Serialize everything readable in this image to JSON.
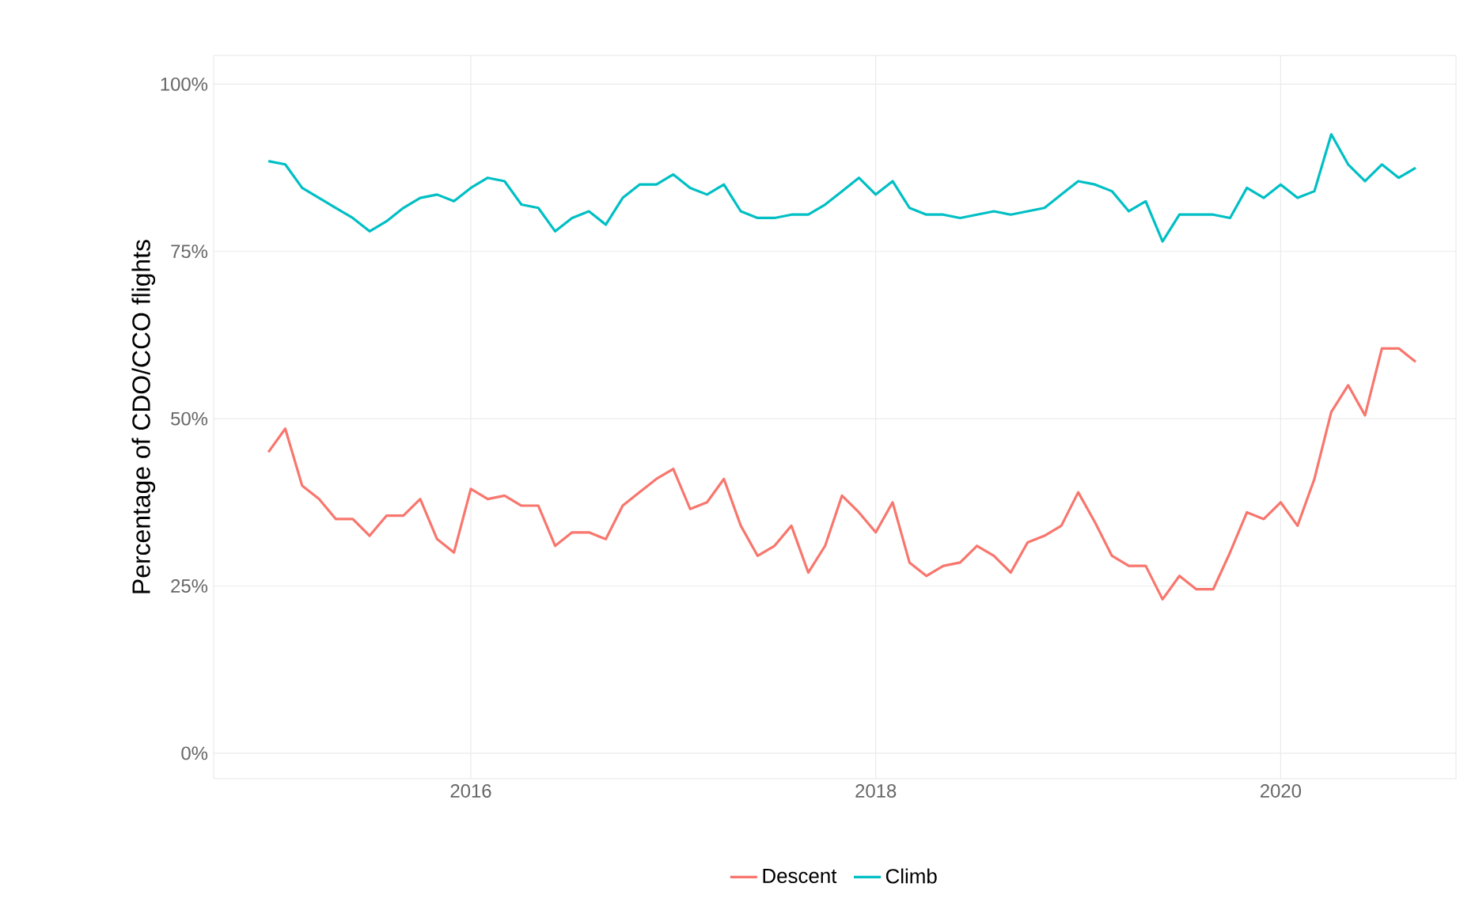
{
  "chart_data": {
    "type": "line",
    "ylabel": "Percentage of CDO/CCO flights",
    "x": [
      "2015-01",
      "2015-02",
      "2015-03",
      "2015-04",
      "2015-05",
      "2015-06",
      "2015-07",
      "2015-08",
      "2015-09",
      "2015-10",
      "2015-11",
      "2015-12",
      "2016-01",
      "2016-02",
      "2016-03",
      "2016-04",
      "2016-05",
      "2016-06",
      "2016-07",
      "2016-08",
      "2016-09",
      "2016-10",
      "2016-11",
      "2016-12",
      "2017-01",
      "2017-02",
      "2017-03",
      "2017-04",
      "2017-05",
      "2017-06",
      "2017-07",
      "2017-08",
      "2017-09",
      "2017-10",
      "2017-11",
      "2017-12",
      "2018-01",
      "2018-02",
      "2018-03",
      "2018-04",
      "2018-05",
      "2018-06",
      "2018-07",
      "2018-08",
      "2018-09",
      "2018-10",
      "2018-11",
      "2018-12",
      "2019-01",
      "2019-02",
      "2019-03",
      "2019-04",
      "2019-05",
      "2019-06",
      "2019-07",
      "2019-08",
      "2019-09",
      "2019-10",
      "2019-11",
      "2019-12",
      "2020-01",
      "2020-02",
      "2020-03",
      "2020-04",
      "2020-05",
      "2020-06",
      "2020-07",
      "2020-08",
      "2020-09"
    ],
    "series": [
      {
        "name": "Descent",
        "color": "#f8766d",
        "values": [
          45,
          48.5,
          40,
          38,
          35,
          35,
          32.5,
          35.5,
          35.5,
          38,
          32,
          30,
          39.5,
          38,
          38.5,
          37,
          37,
          31,
          33,
          33,
          32,
          37,
          39,
          41,
          42.5,
          36.5,
          37.5,
          41,
          34,
          29.5,
          31,
          34,
          27,
          31,
          38.5,
          36,
          33,
          37.5,
          28.5,
          26.5,
          28,
          28.5,
          31,
          29.5,
          27,
          31.5,
          32.5,
          34,
          39,
          34.5,
          29.5,
          28,
          28,
          23,
          26.5,
          24.5,
          24.5,
          30,
          36,
          35,
          37.5,
          34,
          41,
          51,
          55,
          50.5,
          60.5,
          60.5,
          58.5
        ]
      },
      {
        "name": "Climb",
        "color": "#00bfc4",
        "values": [
          88.5,
          88,
          84.5,
          83,
          81.5,
          80,
          78,
          79.5,
          81.5,
          83,
          83.5,
          82.5,
          84.5,
          86,
          85.5,
          82,
          81.5,
          78,
          80,
          81,
          79,
          83,
          85,
          85,
          86.5,
          84.5,
          83.5,
          85,
          81,
          80,
          80,
          80.5,
          80.5,
          82,
          84,
          86,
          83.5,
          85.5,
          81.5,
          80.5,
          80.5,
          80,
          80.5,
          81,
          80.5,
          81,
          81.5,
          83.5,
          85.5,
          85,
          84,
          81,
          82.5,
          76.5,
          80.5,
          80.5,
          80.5,
          80,
          84.5,
          83,
          85,
          83,
          84,
          92.5,
          88,
          85.5,
          88,
          86,
          87.5
        ]
      }
    ],
    "xlim": [
      "2014-09-24",
      "2020-11-13"
    ],
    "xticks": [
      {
        "value": "2016",
        "label": "2016"
      },
      {
        "value": "2018",
        "label": "2018"
      },
      {
        "value": "2020",
        "label": "2020"
      }
    ],
    "ylim": [
      -3.8,
      104.3
    ],
    "yticks": [
      {
        "value": 0,
        "label": "0%"
      },
      {
        "value": 25,
        "label": "25%"
      },
      {
        "value": 50,
        "label": "50%"
      },
      {
        "value": 75,
        "label": "75%"
      },
      {
        "value": 100,
        "label": "100%"
      }
    ],
    "grid": true,
    "legend": "bottom",
    "marker": "none",
    "line_style": "solid"
  }
}
